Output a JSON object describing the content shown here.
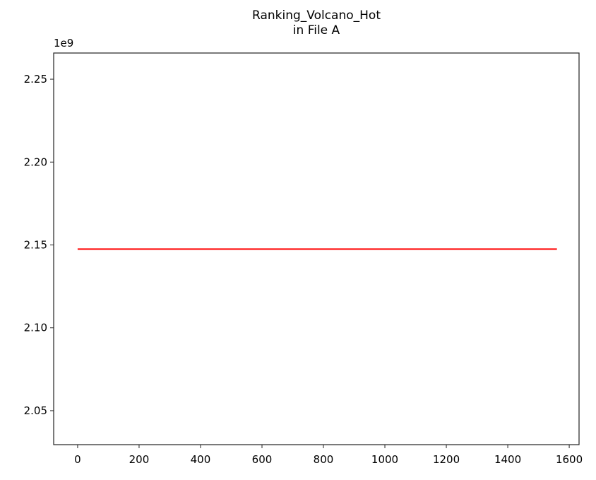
{
  "chart_data": {
    "type": "line",
    "title": "Ranking_Volcano_Hot\nin File A",
    "title_lines": [
      "Ranking_Volcano_Hot",
      "in File A"
    ],
    "xlabel": "",
    "ylabel": "",
    "y_offset_label": "1e9",
    "xlim": [
      -78,
      1632
    ],
    "ylim": [
      2029500000,
      2265800000
    ],
    "x_ticks": [
      0,
      200,
      400,
      600,
      800,
      1000,
      1200,
      1400,
      1600
    ],
    "x_tick_labels": [
      "0",
      "200",
      "400",
      "600",
      "800",
      "1000",
      "1200",
      "1400",
      "1600"
    ],
    "y_ticks": [
      2050000000,
      2100000000,
      2150000000,
      2200000000,
      2250000000
    ],
    "y_tick_labels": [
      "2.05",
      "2.10",
      "2.15",
      "2.20",
      "2.25"
    ],
    "grid": false,
    "legend": null,
    "series": [
      {
        "name": "Ranking_Volcano_Hot",
        "color": "#ff0000",
        "x": [
          0,
          1560
        ],
        "values": [
          2147483647,
          2147483647
        ]
      }
    ]
  }
}
